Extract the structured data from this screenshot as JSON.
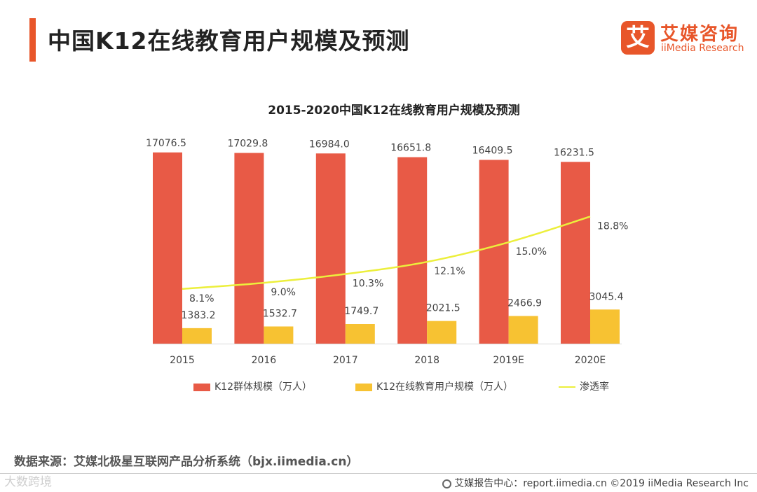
{
  "header": {
    "title": "中国K12在线教育用户规模及预测",
    "logo_mark": "艾",
    "logo_cn": "艾媒咨询",
    "logo_en": "iiMedia Research"
  },
  "chart_data": {
    "type": "bar",
    "title": "2015-2020中国K12在线教育用户规模及预测",
    "categories": [
      "2015",
      "2016",
      "2017",
      "2018",
      "2019E",
      "2020E"
    ],
    "series": [
      {
        "name": "K12群体规模（万人）",
        "type": "bar",
        "color": "#e85a46",
        "values": [
          17076.5,
          17029.8,
          16984.0,
          16651.8,
          16409.5,
          16231.5
        ],
        "labels": [
          "17076.5",
          "17029.8",
          "16984.0",
          "16651.8",
          "16409.5",
          "16231.5"
        ]
      },
      {
        "name": "K12在线教育用户规模（万人）",
        "type": "bar",
        "color": "#f7c232",
        "values": [
          1383.2,
          1532.7,
          1749.7,
          2021.5,
          2466.9,
          3045.4
        ],
        "labels": [
          "1383.2",
          "1532.7",
          "1749.7",
          "2021.5",
          "2466.9",
          "3045.4"
        ]
      },
      {
        "name": "渗透率",
        "type": "line",
        "color": "#ecef3c",
        "values": [
          8.1,
          9.0,
          10.3,
          12.1,
          15.0,
          18.8
        ],
        "labels": [
          "8.1%",
          "9.0%",
          "10.3%",
          "12.1%",
          "15.0%",
          "18.8%"
        ]
      }
    ],
    "ylim": [
      0,
      17500
    ],
    "y2lim": [
      0,
      29
    ],
    "grid": false,
    "legend_position": "bottom"
  },
  "footer": {
    "source": "数据来源：艾媒北极星互联网产品分析系统（bjx.iimedia.cn）",
    "watermark": "大数跨境",
    "report": "艾媒报告中心：report.iimedia.cn ©2019 iiMedia Research Inc"
  }
}
